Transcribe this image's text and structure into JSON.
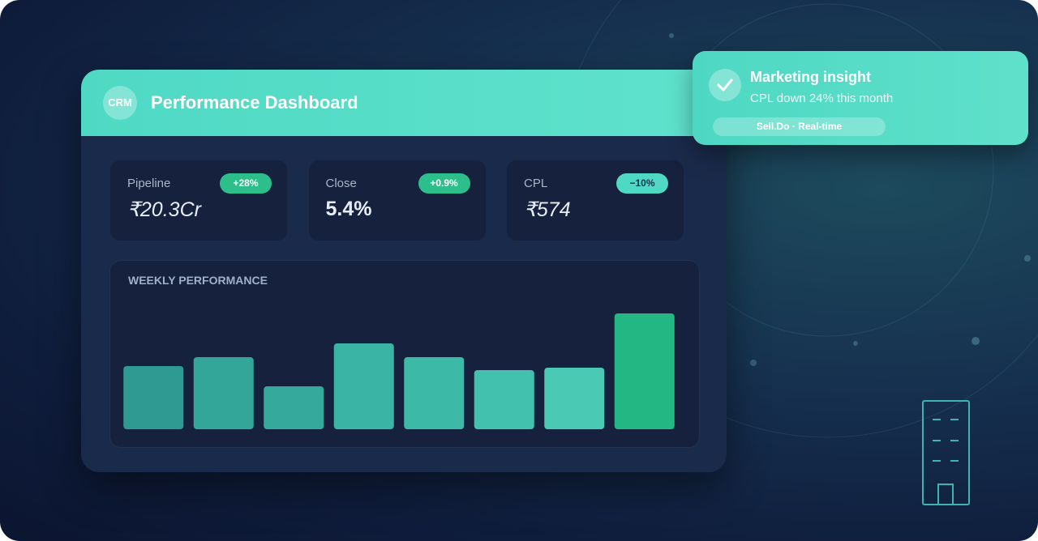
{
  "header": {
    "logo": "CRM",
    "title": "Performance Dashboard"
  },
  "kpis": [
    {
      "label": "Pipeline",
      "value": "₹20.3Cr",
      "badge": "+28%"
    },
    {
      "label": "Close",
      "value": "5.4%",
      "badge": "+0.9%"
    },
    {
      "label": "CPL",
      "value": "₹574",
      "badge": "−10%"
    }
  ],
  "notification": {
    "title": "Marketing insight",
    "text": "CPL down 24% this month",
    "tag": "Sell.Do · Real-time"
  },
  "chart_data": {
    "type": "bar",
    "title": "WEEKLY PERFORMANCE",
    "categories": [
      null,
      null,
      null,
      null,
      null,
      null,
      null,
      null
    ],
    "values": [
      78,
      89,
      53,
      106,
      89,
      73,
      76,
      143
    ],
    "colors": [
      "#2f9a91",
      "#33a599",
      "#35a99c",
      "#3ab4a4",
      "#3db9a7",
      "#42c2ae",
      "#4acab4",
      "#22b783"
    ],
    "ylim": [
      0,
      150
    ]
  }
}
